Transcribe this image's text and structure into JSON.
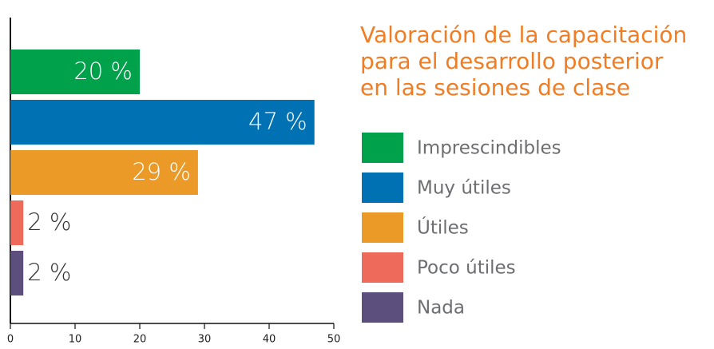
{
  "chart_data": {
    "type": "barh",
    "title": [
      "Valoración de la capacitación",
      "para el desarrollo posterior",
      "en las sesiones de clase"
    ],
    "categories": [
      "Imprescindibles",
      "Muy útiles",
      "Útiles",
      "Poco útiles",
      "Nada"
    ],
    "values": [
      20,
      47,
      29,
      2,
      2
    ],
    "value_labels": [
      "20 %",
      "47 %",
      "29 %",
      "2 %",
      "2 %"
    ],
    "colors": [
      "#00a14b",
      "#0071b3",
      "#eb9a28",
      "#ee6a5a",
      "#5c4f7d"
    ],
    "xlim": [
      0,
      50
    ],
    "xticks": [
      0,
      10,
      20,
      30,
      40,
      50
    ],
    "legend": "right"
  }
}
